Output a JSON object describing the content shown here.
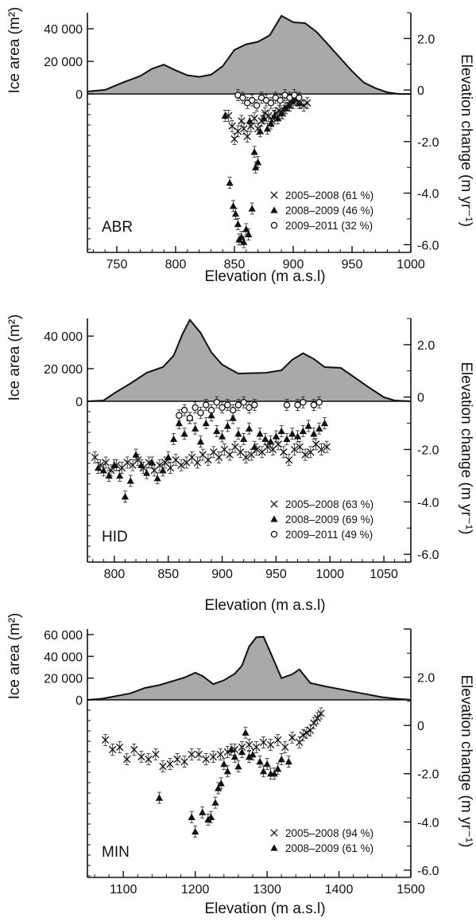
{
  "chart_data": [
    {
      "type": "area+scatter",
      "panel_label": "ABR",
      "xlabel": "Elevation (m a.s.l)",
      "ylabel_left": "Ice area (m²)",
      "ylabel_right": "Elevation change (m yr⁻¹)",
      "xlim": [
        725,
        1000
      ],
      "xticks": [
        750,
        800,
        850,
        900,
        950,
        1000
      ],
      "area_ylim": [
        0,
        43000
      ],
      "area_yticks": [
        {
          "value": 0,
          "label": "0"
        },
        {
          "value": 20000,
          "label": "20 000"
        },
        {
          "value": 40000,
          "label": "40 000"
        }
      ],
      "change_ylim": [
        -6.3,
        3.0
      ],
      "change_yticks": [
        {
          "value": 2,
          "label": "2.0"
        },
        {
          "value": 0,
          "label": "0"
        },
        {
          "value": -2,
          "label": "-2.0"
        },
        {
          "value": -4,
          "label": "-4.0"
        },
        {
          "value": -6,
          "label": "-6.0"
        }
      ],
      "area": {
        "x": [
          725,
          740,
          755,
          770,
          780,
          790,
          800,
          810,
          820,
          830,
          840,
          850,
          860,
          870,
          880,
          890,
          900,
          910,
          920,
          930,
          940,
          950,
          960,
          970,
          980,
          990,
          1000
        ],
        "y": [
          1500,
          2500,
          7000,
          11000,
          15500,
          18000,
          14500,
          11500,
          10500,
          11800,
          17000,
          27000,
          30500,
          32000,
          36000,
          48000,
          44000,
          43500,
          38000,
          30000,
          22000,
          14000,
          7000,
          3500,
          1000,
          0,
          0
        ]
      },
      "legend": {
        "placement": "bottom-right"
      },
      "series": [
        {
          "name": "2005–2008 (61 %)",
          "marker": "x",
          "x": [
            845,
            848,
            850,
            853,
            856,
            858,
            861,
            864,
            867,
            870,
            873,
            876,
            879,
            882,
            885,
            888,
            891,
            894,
            897,
            900,
            903,
            906,
            909,
            912
          ],
          "y": [
            -1.0,
            -1.4,
            -1.9,
            -1.6,
            -1.2,
            -1.5,
            -1.8,
            -1.4,
            -1.1,
            -1.5,
            -1.2,
            -0.9,
            -1.0,
            -1.2,
            -0.9,
            -0.8,
            -0.9,
            -0.7,
            -0.6,
            -0.5,
            -0.4,
            -0.5,
            -0.6,
            -0.5
          ]
        },
        {
          "name": "2008–2009 (46 %)",
          "marker": "triangle",
          "x": [
            842,
            846,
            849,
            851,
            853,
            854,
            856,
            858,
            860,
            862,
            863,
            865,
            867,
            868,
            870,
            872,
            875,
            878,
            881,
            884,
            887,
            890,
            893,
            896,
            899,
            902,
            905
          ],
          "y": [
            -1.0,
            -3.6,
            -4.5,
            -4.8,
            -5.2,
            -5.8,
            -5.7,
            -5.9,
            -5.4,
            -5.6,
            -1.2,
            -4.6,
            -2.4,
            -3.0,
            -2.8,
            -1.6,
            -1.1,
            -1.5,
            -1.3,
            -1.0,
            -1.1,
            -0.9,
            -0.7,
            -0.6,
            -0.4,
            -0.3,
            -0.5
          ]
        },
        {
          "name": "2009–2011 (32 %)",
          "marker": "circle",
          "x": [
            853,
            857,
            861,
            865,
            869,
            873,
            877,
            881,
            885,
            889,
            893,
            897,
            901,
            905
          ],
          "y": [
            -0.2,
            -0.3,
            -0.5,
            -0.4,
            -0.6,
            -0.3,
            -0.4,
            -0.5,
            -0.3,
            -0.4,
            -0.2,
            -0.3,
            -0.2,
            -0.3
          ]
        }
      ]
    },
    {
      "type": "area+scatter",
      "panel_label": "HID",
      "xlabel": "Elevation (m a.s.l)",
      "ylabel_left": "Ice area (m²)",
      "ylabel_right": "Elevation change (m yr⁻¹)",
      "xlim": [
        775,
        1075
      ],
      "xticks": [
        800,
        850,
        900,
        950,
        1000,
        1050
      ],
      "area_ylim": [
        0,
        43000
      ],
      "area_yticks": [
        {
          "value": 0,
          "label": "0"
        },
        {
          "value": 20000,
          "label": "20 000"
        },
        {
          "value": 40000,
          "label": "40 000"
        }
      ],
      "change_ylim": [
        -6.3,
        3.0
      ],
      "change_yticks": [
        {
          "value": 2,
          "label": "2.0"
        },
        {
          "value": 0,
          "label": "0"
        },
        {
          "value": -2,
          "label": "-2.0"
        },
        {
          "value": -4,
          "label": "-4.0"
        },
        {
          "value": -6,
          "label": "-6.0"
        }
      ],
      "area": {
        "x": [
          775,
          790,
          800,
          815,
          830,
          845,
          855,
          863,
          870,
          880,
          890,
          900,
          915,
          925,
          940,
          955,
          965,
          975,
          985,
          995,
          1010,
          1020,
          1035,
          1050,
          1060,
          1075
        ],
        "y": [
          0,
          500,
          5000,
          11000,
          17500,
          21000,
          28000,
          41000,
          50000,
          42000,
          30000,
          22500,
          17000,
          17200,
          17500,
          19000,
          25500,
          29500,
          26000,
          21000,
          20500,
          16000,
          9000,
          2500,
          500,
          0
        ]
      },
      "legend": {
        "placement": "bottom-right"
      },
      "series": [
        {
          "name": "2005–2008 (63 %)",
          "marker": "x",
          "x": [
            782,
            787,
            792,
            797,
            802,
            807,
            812,
            817,
            822,
            827,
            832,
            837,
            842,
            847,
            852,
            857,
            862,
            867,
            872,
            877,
            882,
            887,
            892,
            897,
            902,
            907,
            912,
            917,
            922,
            927,
            932,
            937,
            942,
            947,
            952,
            957,
            962,
            967,
            972,
            977,
            982,
            987,
            992,
            997
          ],
          "y": [
            -2.3,
            -2.6,
            -2.5,
            -2.8,
            -2.6,
            -2.7,
            -2.5,
            -2.6,
            -2.4,
            -2.7,
            -2.5,
            -2.8,
            -2.6,
            -2.5,
            -2.7,
            -2.4,
            -2.6,
            -2.5,
            -2.3,
            -2.5,
            -2.2,
            -2.4,
            -2.1,
            -2.3,
            -2.0,
            -2.2,
            -1.9,
            -2.1,
            -2.3,
            -2.2,
            -2.0,
            -2.1,
            -1.9,
            -2.0,
            -1.8,
            -2.1,
            -2.4,
            -2.0,
            -1.9,
            -2.2,
            -2.1,
            -1.8,
            -2.0,
            -1.9
          ]
        },
        {
          "name": "2008–2009 (69 %)",
          "marker": "triangle",
          "x": [
            785,
            790,
            795,
            800,
            805,
            810,
            815,
            820,
            825,
            830,
            835,
            840,
            845,
            850,
            855,
            860,
            865,
            870,
            875,
            880,
            885,
            890,
            895,
            900,
            905,
            910,
            915,
            920,
            925,
            930,
            935,
            940,
            945,
            950,
            955,
            960,
            965,
            970,
            975,
            980,
            985,
            990,
            995
          ],
          "y": [
            -2.7,
            -2.8,
            -3.0,
            -2.6,
            -3.0,
            -3.8,
            -3.2,
            -2.2,
            -2.6,
            -2.9,
            -2.5,
            -3.1,
            -2.8,
            -2.3,
            -1.6,
            -1.0,
            -1.4,
            -0.8,
            -1.2,
            -1.7,
            -1.0,
            -0.7,
            -1.3,
            -1.5,
            -1.1,
            -0.8,
            -1.4,
            -1.6,
            -1.2,
            -1.9,
            -1.4,
            -1.6,
            -1.7,
            -1.5,
            -1.3,
            -1.6,
            -1.4,
            -1.5,
            -1.3,
            -1.1,
            -1.4,
            -1.2,
            -1.0
          ]
        },
        {
          "name": "2009–2011 (49 %)",
          "marker": "circle",
          "x": [
            860,
            865,
            870,
            875,
            880,
            885,
            890,
            895,
            900,
            905,
            910,
            915,
            920,
            925,
            930,
            960,
            970,
            975,
            985,
            990
          ],
          "y": [
            -0.7,
            -0.5,
            -0.8,
            -0.4,
            -0.6,
            -0.3,
            -0.5,
            -0.2,
            -0.4,
            -0.3,
            -0.5,
            -0.3,
            -0.2,
            -0.4,
            -0.3,
            -0.3,
            -0.3,
            -0.2,
            -0.3,
            -0.2
          ]
        }
      ]
    },
    {
      "type": "area+scatter",
      "panel_label": "MIN",
      "xlabel": "Elevation (m a.s.l)",
      "ylabel_left": "Ice area (m²)",
      "ylabel_right": "Elevation change (m yr⁻¹)",
      "xlim": [
        1050,
        1500
      ],
      "xticks": [
        1100,
        1200,
        1300,
        1400,
        1500
      ],
      "area_ylim": [
        0,
        60000
      ],
      "area_yticks": [
        {
          "value": 0,
          "label": "0"
        },
        {
          "value": 20000,
          "label": "20 000"
        },
        {
          "value": 40000,
          "label": "40 000"
        },
        {
          "value": 60000,
          "label": "60 000"
        }
      ],
      "change_ylim": [
        -6.3,
        4.0
      ],
      "change_yticks": [
        {
          "value": 2,
          "label": "2.0"
        },
        {
          "value": 0,
          "label": "0"
        },
        {
          "value": -2,
          "label": "-2.0"
        },
        {
          "value": -4,
          "label": "-4.0"
        },
        {
          "value": -6,
          "label": "-6.0"
        }
      ],
      "area": {
        "x": [
          1050,
          1070,
          1090,
          1110,
          1130,
          1150,
          1170,
          1185,
          1200,
          1210,
          1225,
          1240,
          1255,
          1265,
          1275,
          1285,
          1295,
          1305,
          1320,
          1335,
          1345,
          1360,
          1380,
          1400,
          1420,
          1440,
          1460,
          1480,
          1500
        ],
        "y": [
          0,
          1000,
          3500,
          6000,
          11000,
          13500,
          17500,
          20500,
          25000,
          22000,
          14500,
          18000,
          24000,
          31500,
          49000,
          57500,
          58000,
          43000,
          20000,
          23500,
          28000,
          15500,
          12500,
          10000,
          7500,
          5000,
          2500,
          1000,
          0
        ]
      },
      "legend": {
        "placement": "bottom-right"
      },
      "series": [
        {
          "name": "2005–2008 (94 %)",
          "marker": "x",
          "x": [
            1075,
            1085,
            1095,
            1105,
            1115,
            1125,
            1135,
            1145,
            1155,
            1165,
            1175,
            1185,
            1195,
            1205,
            1215,
            1225,
            1235,
            1245,
            1255,
            1265,
            1275,
            1285,
            1295,
            1305,
            1315,
            1325,
            1335,
            1345,
            1350,
            1355,
            1360,
            1365,
            1370,
            1375
          ],
          "y": [
            -0.6,
            -1.0,
            -0.9,
            -1.4,
            -1.0,
            -1.3,
            -1.4,
            -1.2,
            -1.7,
            -1.6,
            -1.4,
            -1.5,
            -1.2,
            -1.2,
            -1.4,
            -1.3,
            -1.2,
            -1.1,
            -1.0,
            -0.9,
            -0.8,
            -0.9,
            -0.7,
            -0.8,
            -0.6,
            -0.9,
            -0.5,
            -0.7,
            -0.4,
            -0.3,
            -0.2,
            0.1,
            0.3,
            0.5
          ]
        },
        {
          "name": "2008–2009 (61 %)",
          "marker": "triangle",
          "x": [
            1150,
            1195,
            1200,
            1210,
            1218,
            1222,
            1228,
            1232,
            1236,
            1240,
            1245,
            1250,
            1255,
            1260,
            1265,
            1270,
            1275,
            1280,
            1290,
            1295,
            1300,
            1305,
            1310,
            1315,
            1320,
            1330
          ],
          "y": [
            -3.0,
            -3.8,
            -4.4,
            -3.6,
            -3.9,
            -3.8,
            -3.2,
            -2.6,
            -2.4,
            -1.6,
            -1.9,
            -1.0,
            -1.3,
            -1.7,
            -1.1,
            -0.3,
            -1.3,
            -1.2,
            -1.5,
            -1.9,
            -1.6,
            -2.0,
            -2.0,
            -1.8,
            -1.4,
            -1.5
          ]
        }
      ]
    }
  ]
}
